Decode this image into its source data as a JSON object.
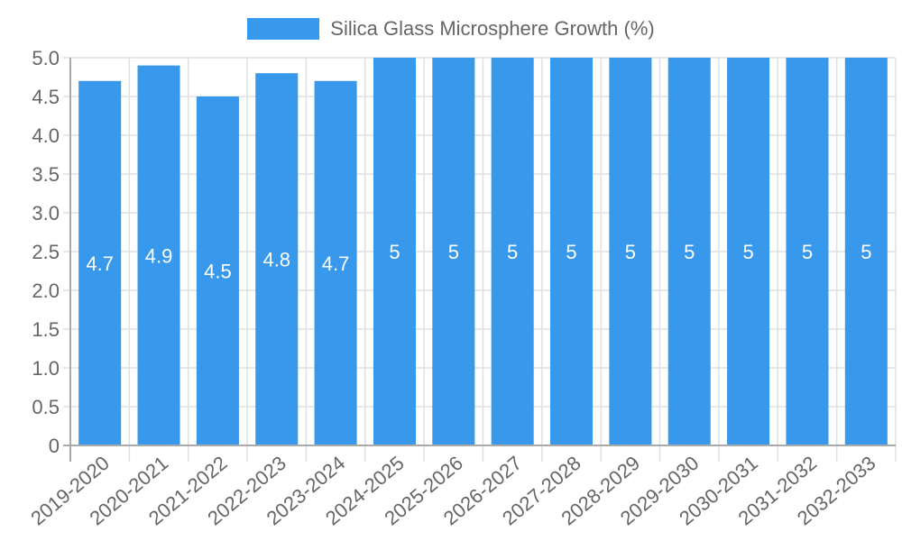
{
  "legend": {
    "label": "Silica Glass Microsphere Growth (%)",
    "color": "#3899ec"
  },
  "colors": {
    "bar": "#3899ec",
    "grid": "#e0e0e0",
    "axis": "#aaaaaa",
    "tick_text": "#666666",
    "data_label": "#ffffff"
  },
  "chart_data": {
    "type": "bar",
    "title": "",
    "xlabel": "",
    "ylabel": "",
    "categories": [
      "2019-2020",
      "2020-2021",
      "2021-2022",
      "2022-2023",
      "2023-2024",
      "2024-2025",
      "2025-2026",
      "2026-2027",
      "2027-2028",
      "2028-2029",
      "2029-2030",
      "2030-2031",
      "2031-2032",
      "2032-2033"
    ],
    "series": [
      {
        "name": "Silica Glass Microsphere Growth (%)",
        "values": [
          4.7,
          4.9,
          4.5,
          4.8,
          4.7,
          5,
          5,
          5,
          5,
          5,
          5,
          5,
          5,
          5
        ]
      }
    ],
    "data_labels": [
      "4.7",
      "4.9",
      "4.5",
      "4.8",
      "4.7",
      "5",
      "5",
      "5",
      "5",
      "5",
      "5",
      "5",
      "5",
      "5"
    ],
    "ylim": [
      0,
      5.0
    ],
    "yticks": [
      "0",
      "0.5",
      "1.0",
      "1.5",
      "2.0",
      "2.5",
      "3.0",
      "3.5",
      "4.0",
      "4.5",
      "5.0"
    ],
    "grid": true,
    "legend_position": "top"
  }
}
